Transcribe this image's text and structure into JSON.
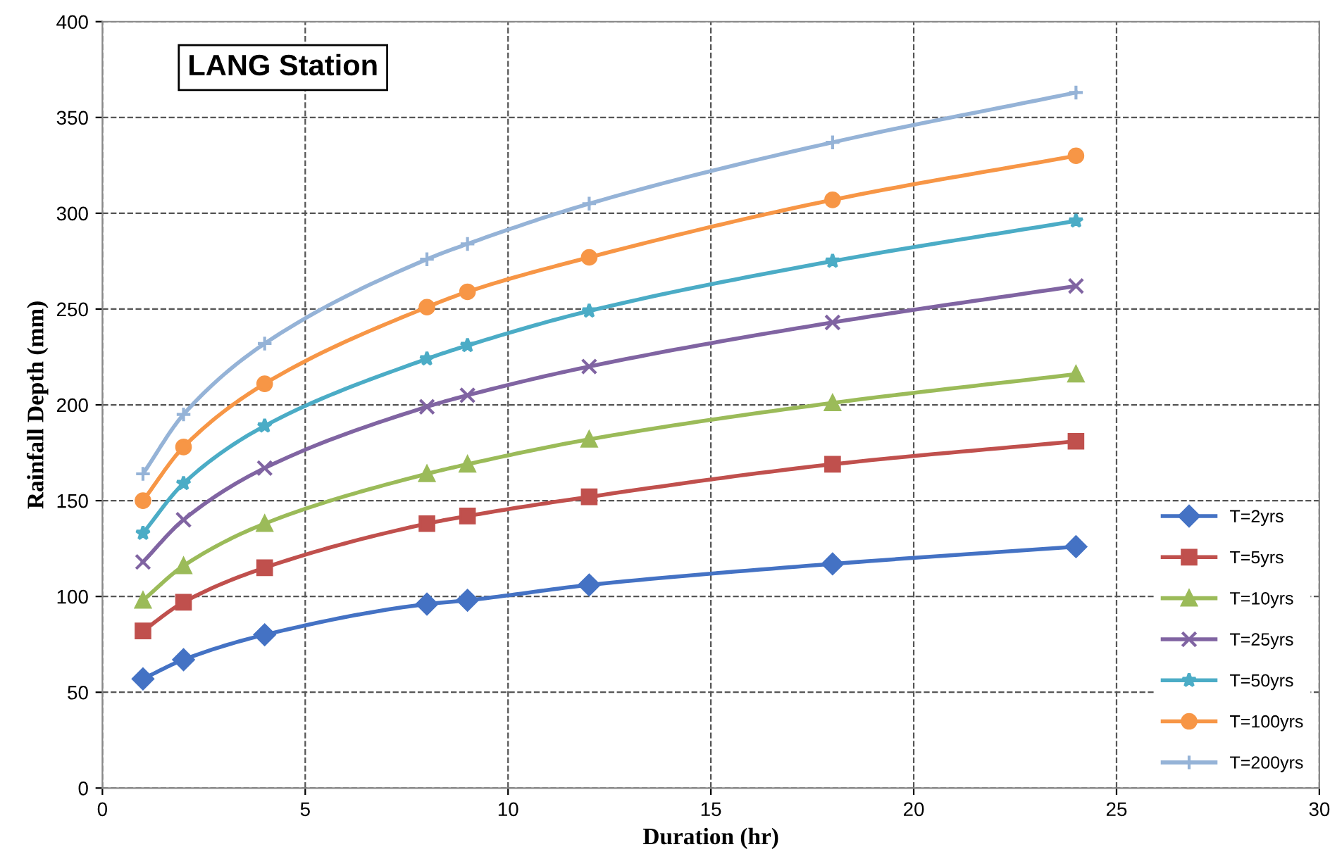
{
  "chart_data": {
    "type": "line",
    "xlabel": "Duration (hr)",
    "ylabel": "Rainfall Depth (mm)",
    "annotations": [
      "LANG Station"
    ],
    "x": [
      1,
      2,
      4,
      8,
      9,
      12,
      18,
      24
    ],
    "series": [
      {
        "name": "T=2yrs",
        "color": "#4472c4",
        "marker": "diamond",
        "values": [
          57,
          67,
          80,
          96,
          98,
          106,
          117,
          126
        ]
      },
      {
        "name": "T=5yrs",
        "color": "#c0504d",
        "marker": "square",
        "values": [
          82,
          97,
          115,
          138,
          142,
          152,
          169,
          181
        ]
      },
      {
        "name": "T=10yrs",
        "color": "#9bbb59",
        "marker": "triangle",
        "values": [
          98,
          116,
          138,
          164,
          169,
          182,
          201,
          216
        ]
      },
      {
        "name": "T=25yrs",
        "color": "#8064a2",
        "marker": "cross",
        "values": [
          118,
          140,
          167,
          199,
          205,
          220,
          243,
          262
        ]
      },
      {
        "name": "T=50yrs",
        "color": "#4bacc6",
        "marker": "star",
        "values": [
          133,
          159,
          189,
          224,
          231,
          249,
          275,
          296
        ]
      },
      {
        "name": "T=100yrs",
        "color": "#f79646",
        "marker": "circle",
        "values": [
          150,
          178,
          211,
          251,
          259,
          277,
          307,
          330
        ]
      },
      {
        "name": "T=200yrs",
        "color": "#95b3d7",
        "marker": "plus",
        "values": [
          164,
          195,
          232,
          276,
          284,
          305,
          337,
          363
        ]
      }
    ],
    "xlim": [
      0,
      30
    ],
    "xticks": [
      0,
      5,
      10,
      15,
      20,
      25,
      30
    ],
    "ylim": [
      0,
      400
    ],
    "yticks": [
      0,
      50,
      100,
      150,
      200,
      250,
      300,
      350,
      400
    ],
    "grid": true,
    "legend": "bottom right",
    "line_style": "solid"
  }
}
